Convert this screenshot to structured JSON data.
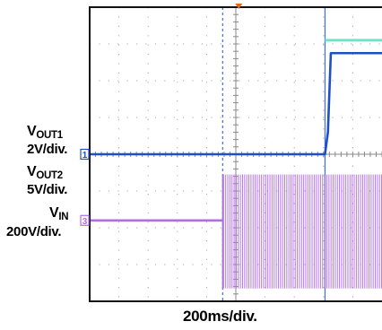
{
  "chart_data": {
    "type": "line",
    "x_divisions": 10,
    "y_divisions": 8,
    "grid": true,
    "xlabel": "200ms/div.",
    "vout1_label": {
      "name": "V",
      "sub": "OUT1"
    },
    "vout2_label": {
      "name": "V",
      "sub": "OUT2"
    },
    "vin_label": {
      "name": "V",
      "sub": "IN"
    },
    "series": [
      {
        "name": "VOUT1",
        "scale": "2V/div.",
        "marker": "1",
        "color": "#1f4fc7",
        "x": [
          0,
          8.05,
          8.15,
          8.25,
          10.0
        ],
        "y": [
          4.0,
          4.0,
          4.6,
          6.75,
          6.75
        ]
      },
      {
        "name": "VOUT2",
        "scale": "5V/div.",
        "color": "#6fe3c6",
        "x": [
          8.05,
          10.0
        ],
        "y": [
          7.1,
          7.1
        ]
      },
      {
        "name": "VIN",
        "scale": "200V/div.",
        "marker": "3",
        "color": "#b06ee6",
        "x": [
          0,
          4.55,
          10.0
        ],
        "y": [
          2.2,
          2.2,
          2.2
        ],
        "ac_envelope_after_x": 4.55,
        "ac_envelope_y": [
          0.35,
          3.45
        ]
      }
    ],
    "cursors": [
      {
        "x": 4.55,
        "style": "dashed",
        "color": "#3f6fd8"
      },
      {
        "x": 8.05,
        "style": "solid",
        "color": "#3f6fd8"
      }
    ],
    "trigger_marker_x": 5.1
  }
}
